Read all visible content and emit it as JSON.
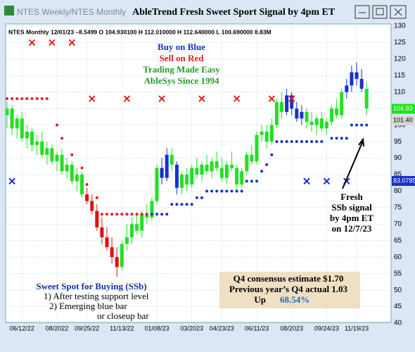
{
  "window": {
    "title_left": "NTES Weekly/NTES Monthly",
    "title": "AbleTrend Fresh Sweet Sport Signal by 4pm ET"
  },
  "chart_data": {
    "type": "candlestick",
    "info": "NTES  Monthly 12/01/23 –8.5499 O 104.930100 H 112.010000 H 112.640000 L 100.690000 8.83M",
    "categories": [
      null,
      null,
      null,
      "06/12/22",
      null,
      null,
      null,
      null,
      null,
      null,
      "08/2022",
      null,
      null,
      null,
      null,
      null,
      "09/25/22",
      null,
      null,
      null,
      null,
      null,
      null,
      "11/13/22",
      null,
      null,
      null,
      null,
      null,
      null,
      "01/08/23",
      null,
      null,
      null,
      null,
      null,
      null,
      "03/2023",
      null,
      null,
      null,
      null,
      null,
      "04/23/23",
      null,
      null,
      null,
      null,
      null,
      null,
      "06/11/23",
      null,
      null,
      null,
      null,
      null,
      null,
      "08/2023",
      null,
      null,
      null,
      null,
      null,
      null,
      "09/24/23",
      null,
      null,
      null,
      null,
      null,
      "11/19/23",
      null,
      null
    ],
    "ohlc": [
      [
        103,
        107,
        99,
        105
      ],
      [
        105,
        106,
        97,
        99
      ],
      [
        99,
        103,
        96,
        102
      ],
      [
        102,
        104,
        95,
        96
      ],
      [
        96,
        100,
        93,
        98
      ],
      [
        98,
        99,
        92,
        94
      ],
      [
        94,
        97,
        91,
        95
      ],
      [
        95,
        98,
        90,
        91
      ],
      [
        91,
        95,
        88,
        93
      ],
      [
        93,
        94,
        88,
        89
      ],
      [
        89,
        92,
        86,
        91
      ],
      [
        91,
        93,
        85,
        86
      ],
      [
        86,
        90,
        84,
        88
      ],
      [
        88,
        89,
        82,
        83
      ],
      [
        83,
        87,
        80,
        85
      ],
      [
        85,
        86,
        78,
        79
      ],
      [
        79,
        81,
        76,
        77
      ],
      [
        77,
        79,
        73,
        74
      ],
      [
        74,
        76,
        68,
        69
      ],
      [
        69,
        72,
        64,
        66
      ],
      [
        66,
        69,
        62,
        63
      ],
      [
        63,
        66,
        58,
        60
      ],
      [
        60,
        63,
        54,
        57
      ],
      [
        57,
        65,
        56,
        64
      ],
      [
        64,
        70,
        62,
        66
      ],
      [
        66,
        72,
        64,
        70
      ],
      [
        70,
        73,
        67,
        68
      ],
      [
        68,
        74,
        66,
        73
      ],
      [
        73,
        76,
        70,
        72
      ],
      [
        72,
        78,
        71,
        77
      ],
      [
        77,
        88,
        76,
        87
      ],
      [
        87,
        90,
        82,
        84
      ],
      [
        84,
        93,
        83,
        91
      ],
      [
        91,
        93,
        86,
        88
      ],
      [
        88,
        89,
        79,
        81
      ],
      [
        81,
        86,
        79,
        85
      ],
      [
        85,
        87,
        80,
        82
      ],
      [
        82,
        88,
        81,
        87
      ],
      [
        87,
        90,
        84,
        85
      ],
      [
        85,
        89,
        83,
        88
      ],
      [
        88,
        91,
        85,
        86
      ],
      [
        86,
        90,
        84,
        89
      ],
      [
        89,
        92,
        86,
        87
      ],
      [
        87,
        90,
        83,
        84
      ],
      [
        84,
        89,
        82,
        88
      ],
      [
        88,
        92,
        86,
        87
      ],
      [
        87,
        88,
        80,
        82
      ],
      [
        82,
        87,
        81,
        86
      ],
      [
        86,
        92,
        85,
        91
      ],
      [
        91,
        94,
        88,
        89
      ],
      [
        89,
        98,
        88,
        97
      ],
      [
        97,
        100,
        95,
        98
      ],
      [
        98,
        100,
        93,
        95
      ],
      [
        95,
        102,
        94,
        100
      ],
      [
        100,
        108,
        99,
        107
      ],
      [
        107,
        110,
        102,
        104
      ],
      [
        104,
        111,
        103,
        109
      ],
      [
        109,
        110,
        103,
        105
      ],
      [
        105,
        107,
        101,
        102
      ],
      [
        102,
        106,
        100,
        104
      ],
      [
        104,
        105,
        99,
        101
      ],
      [
        101,
        104,
        98,
        100
      ],
      [
        100,
        103,
        97,
        102
      ],
      [
        102,
        104,
        98,
        99
      ],
      [
        99,
        102,
        97,
        101
      ],
      [
        101,
        106,
        100,
        105
      ],
      [
        105,
        108,
        102,
        103
      ],
      [
        103,
        111,
        102,
        110
      ],
      [
        110,
        114,
        108,
        112
      ],
      [
        112,
        118,
        110,
        116
      ],
      [
        116,
        119,
        112,
        114
      ],
      [
        114,
        117,
        110,
        111
      ],
      [
        111,
        113,
        103,
        105
      ]
    ],
    "candle_colors": "ggggggggggggggggrrrrrrrggggggggbbgbgggggggggggggggggggggbbbbggggggggbbbbgggg",
    "palette": {
      "g": "#22e022",
      "r": "#e01010",
      "b": "#1a2fd0"
    },
    "stops": [
      {
        "color": "#e02020",
        "values": [
          108,
          108,
          108,
          108,
          108,
          108,
          108,
          108,
          108,
          null,
          100,
          96,
          null,
          91,
          null,
          87,
          82,
          null,
          78,
          73,
          73,
          73,
          73,
          73,
          73,
          73,
          73,
          73,
          73,
          null,
          null,
          null,
          null,
          null,
          null,
          null,
          null,
          null,
          null,
          null,
          null,
          null,
          null,
          null,
          null,
          null,
          null,
          null,
          null,
          null,
          null,
          null,
          null,
          null,
          null,
          null,
          null,
          null,
          null,
          null,
          null,
          null,
          null,
          null,
          null,
          null,
          null,
          null,
          null,
          null,
          null,
          null,
          null
        ]
      },
      {
        "color": "#1a2fd0",
        "values": [
          null,
          null,
          null,
          null,
          null,
          null,
          null,
          null,
          null,
          null,
          null,
          null,
          null,
          null,
          null,
          null,
          null,
          null,
          null,
          null,
          null,
          null,
          null,
          null,
          null,
          null,
          null,
          null,
          null,
          73,
          73,
          73,
          73,
          76,
          76,
          76,
          76,
          76,
          78,
          78,
          80,
          80,
          80,
          80,
          80,
          80,
          80,
          80,
          83,
          83,
          83,
          86,
          88,
          91,
          95,
          95,
          95,
          95,
          95,
          95,
          95,
          95,
          95,
          95,
          null,
          96,
          96,
          96,
          96,
          100,
          100,
          100,
          100
        ]
      }
    ],
    "signals": [
      {
        "color": "#e02020",
        "index": [
          5,
          9,
          13,
          17,
          24,
          31,
          39,
          46,
          53,
          57
        ],
        "values": [
          125,
          125,
          125,
          108,
          108,
          108,
          108,
          108,
          108,
          108
        ]
      },
      {
        "color": "#1a2fd0",
        "index": [
          1,
          60,
          64,
          68
        ],
        "values": [
          83,
          83,
          83,
          83
        ]
      }
    ],
    "ylim": [
      40,
      130
    ],
    "yticks": [
      40,
      45,
      50,
      55,
      60,
      65,
      70,
      75,
      80,
      85,
      90,
      95,
      100,
      105,
      110,
      115,
      120,
      125,
      130
    ],
    "price_markers": [
      {
        "value": 104.93,
        "label": "104.93",
        "color": "#22e022"
      },
      {
        "value": 101.4,
        "label": "101.40",
        "color": "#d8d8d8"
      },
      {
        "value": 83.0785,
        "label": "83.0785",
        "color": "#1a2fd0"
      }
    ],
    "legend": [
      "Buy on Blue",
      "Sell on Red",
      "Trading Made Easy",
      "AbleSys Since 1994"
    ],
    "sweet_spot": [
      "Sweet Spot for Buying (SSb)",
      "1) After testing support level",
      "2) Emerging blue bar",
      "or closeup bar"
    ],
    "fresh": [
      "Fresh",
      "SSb signal",
      "by 4pm ET",
      "on 12/7/23"
    ],
    "consensus": [
      "Q4 consensus estimate $1.70",
      "Previous year’s Q4 actual 1.03"
    ],
    "up": {
      "label": "Up",
      "value": "68.54%"
    }
  }
}
